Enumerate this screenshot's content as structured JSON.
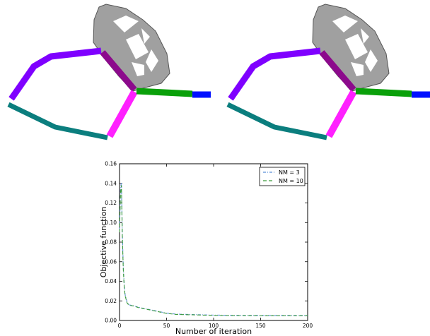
{
  "colors": {
    "link_violet": "#7f00ff",
    "link_purple": "#8c0a8c",
    "link_magenta": "#ff20ff",
    "link_teal": "#0b7e7e",
    "link_green": "#0aa00a",
    "link_blue": "#0010ff",
    "mesh_fill": "#8a8a8a",
    "series_nm3": "#5b8fd6",
    "series_nm10": "#3a9a3a"
  },
  "icons": {
    "left_mechanism": "linkage-mechanism-icon",
    "right_mechanism": "linkage-mechanism-icon"
  },
  "chart_data": {
    "type": "line",
    "title": "",
    "xlabel": "Number of iteration",
    "ylabel": "Objective function",
    "xlim": [
      0,
      200
    ],
    "ylim": [
      0,
      0.16
    ],
    "xticks": [
      "0",
      "50",
      "100",
      "150",
      "200"
    ],
    "yticks": [
      "0.00",
      "0.02",
      "0.04",
      "0.06",
      "0.08",
      "0.10",
      "0.12",
      "0.14",
      "0.16"
    ],
    "legend_position": "top-right",
    "grid": false,
    "series": [
      {
        "name": "NM = 3",
        "style": "dash-dot",
        "x": [
          0,
          1,
          2,
          3,
          4,
          5,
          6,
          8,
          10,
          15,
          20,
          30,
          40,
          50,
          60,
          80,
          100,
          120,
          140,
          160,
          180,
          200
        ],
        "y": [
          0.092,
          0.135,
          0.141,
          0.088,
          0.055,
          0.036,
          0.026,
          0.019,
          0.016,
          0.015,
          0.0135,
          0.0115,
          0.0095,
          0.0075,
          0.0065,
          0.006,
          0.0055,
          0.0053,
          0.0052,
          0.0051,
          0.0051,
          0.005
        ]
      },
      {
        "name": "NM = 10",
        "style": "dashed",
        "x": [
          0,
          1,
          2,
          3,
          4,
          5,
          6,
          8,
          10,
          15,
          20,
          30,
          40,
          50,
          60,
          80,
          100,
          120,
          140,
          160,
          180,
          200
        ],
        "y": [
          0.09,
          0.13,
          0.138,
          0.085,
          0.052,
          0.034,
          0.025,
          0.018,
          0.0155,
          0.0148,
          0.0132,
          0.0112,
          0.0092,
          0.0072,
          0.0062,
          0.0057,
          0.0052,
          0.005,
          0.0049,
          0.0048,
          0.0048,
          0.0047
        ]
      }
    ]
  }
}
